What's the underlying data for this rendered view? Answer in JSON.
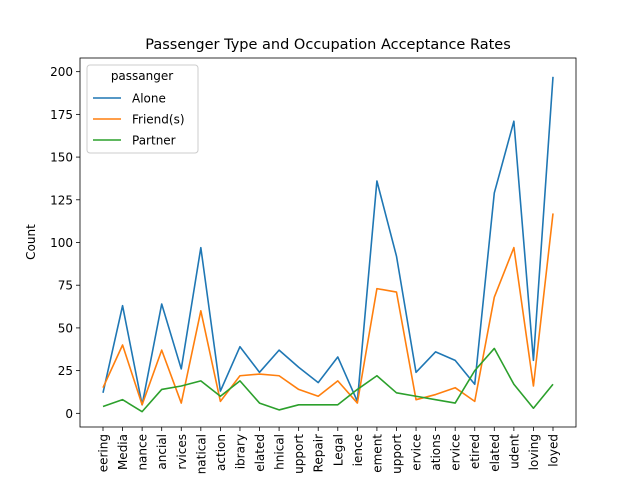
{
  "chart_data": {
    "type": "line",
    "title": "Passenger Type and Occupation Acceptance Rates",
    "xlabel": "",
    "ylabel": "Count",
    "legend_title": "passanger",
    "legend_position": "top-left",
    "grid": false,
    "ylim": [
      -8,
      208
    ],
    "yticks": [
      0,
      25,
      50,
      75,
      100,
      125,
      150,
      175,
      200
    ],
    "categories": [
      "eering",
      "Media",
      "nance",
      "ancial",
      "rvices",
      "natical",
      "action",
      "ibrary",
      "elated",
      "hnical",
      "upport",
      "Repair",
      "Legal",
      "ience",
      "ement",
      "upport",
      "ervice",
      "ations",
      "ervice",
      "etired",
      "elated",
      "udent",
      "loving",
      "loyed"
    ],
    "series": [
      {
        "name": "Alone",
        "color": "#1f77b4",
        "values": [
          12,
          63,
          5,
          64,
          26,
          97,
          13,
          39,
          24,
          37,
          27,
          18,
          33,
          7,
          136,
          92,
          24,
          36,
          31,
          17,
          129,
          171,
          31,
          197
        ]
      },
      {
        "name": "Friend(s)",
        "color": "#ff7f0e",
        "values": [
          15,
          40,
          5,
          37,
          6,
          60,
          7,
          22,
          23,
          22,
          14,
          10,
          19,
          6,
          73,
          71,
          8,
          11,
          15,
          7,
          68,
          97,
          16,
          117
        ]
      },
      {
        "name": "Partner",
        "color": "#2ca02c",
        "values": [
          4,
          8,
          1,
          14,
          16,
          19,
          10,
          19,
          6,
          2,
          5,
          5,
          5,
          14,
          22,
          12,
          10,
          8,
          6,
          25,
          38,
          17,
          3,
          17
        ]
      }
    ]
  }
}
